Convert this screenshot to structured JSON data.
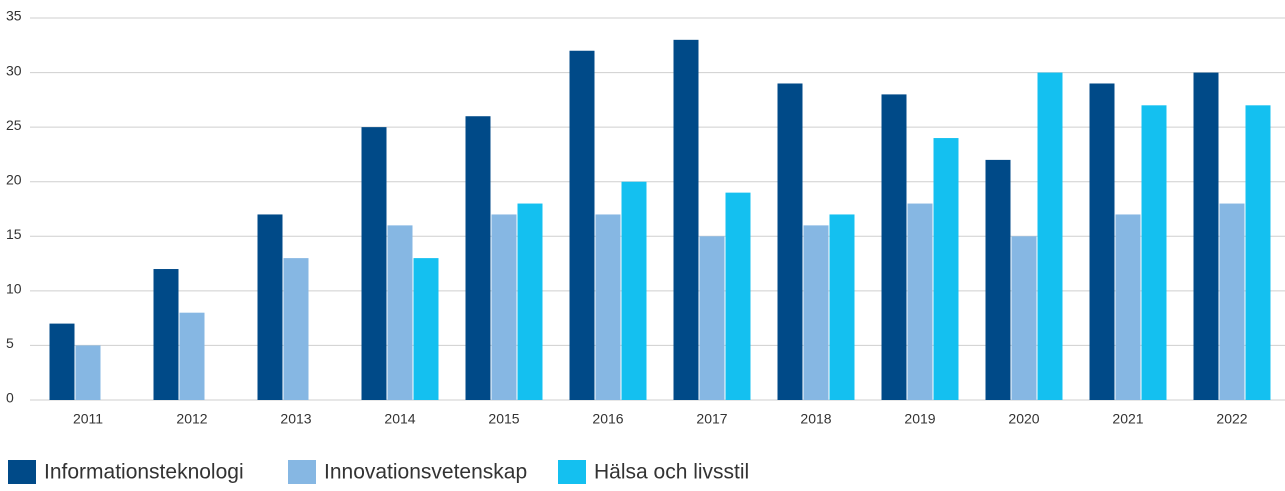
{
  "chart_data": {
    "type": "bar",
    "categories": [
      "2011",
      "2012",
      "2013",
      "2014",
      "2015",
      "2016",
      "2017",
      "2018",
      "2019",
      "2020",
      "2021",
      "2022"
    ],
    "series": [
      {
        "name": "Informationsteknologi",
        "color": "#004a88",
        "values": [
          7,
          12,
          17,
          25,
          26,
          32,
          33,
          29,
          28,
          22,
          29,
          30
        ]
      },
      {
        "name": "Innovationsvetenskap",
        "color": "#86b7e3",
        "values": [
          5,
          8,
          13,
          16,
          17,
          17,
          15,
          16,
          18,
          15,
          17,
          18
        ]
      },
      {
        "name": "Hälsa och livsstil",
        "color": "#14c0f0",
        "values": [
          null,
          null,
          null,
          13,
          18,
          20,
          19,
          17,
          24,
          30,
          27,
          27
        ]
      }
    ],
    "ylim": [
      0,
      35
    ],
    "yticks": [
      0,
      5,
      10,
      15,
      20,
      25,
      30,
      35
    ],
    "grid": true,
    "legend": "bottom"
  }
}
